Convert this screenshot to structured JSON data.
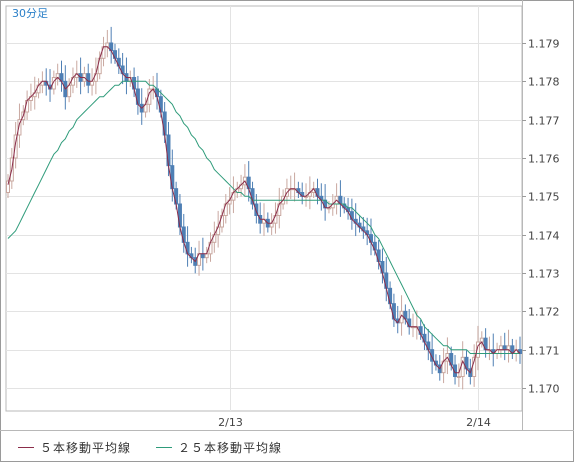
{
  "colors": {
    "up_candle": "#c9a8a0",
    "down_candle": "#4e7fb4",
    "ma5": "#8b2d4a",
    "ma25": "#2e9b7a",
    "grid": "#e3e3e3",
    "axis_text": "#444444",
    "timeframe_text": "#2a7fc8"
  },
  "chart_data": {
    "type": "candlestick",
    "timeframe": "30分足",
    "y_ticks": [
      "1.179",
      "1.178",
      "1.177",
      "1.176",
      "1.175",
      "1.174",
      "1.173",
      "1.172",
      "1.171",
      "1.170"
    ],
    "ylim": [
      1.1694,
      1.1799
    ],
    "x_ticks": [
      {
        "label": "2/13",
        "index": 58
      },
      {
        "label": "2/14",
        "index": 123
      }
    ],
    "grid": true,
    "legend_position": "bottom-left",
    "series": [
      {
        "name": "５本移動平均線",
        "key": "ma5"
      },
      {
        "name": "２５本移動平均線",
        "key": "ma25"
      }
    ],
    "close": [
      1.1754,
      1.176,
      1.1766,
      1.177,
      1.1772,
      1.1775,
      1.1776,
      1.1777,
      1.1779,
      1.178,
      1.1779,
      1.1778,
      1.1781,
      1.1782,
      1.178,
      1.1776,
      1.1779,
      1.1781,
      1.1782,
      1.178,
      1.1782,
      1.1779,
      1.178,
      1.1782,
      1.1786,
      1.1789,
      1.179,
      1.1788,
      1.1786,
      1.1784,
      1.1782,
      1.178,
      1.1781,
      1.1778,
      1.1774,
      1.1772,
      1.1774,
      1.1778,
      1.1778,
      1.1776,
      1.1772,
      1.1766,
      1.1758,
      1.1752,
      1.1748,
      1.1742,
      1.1738,
      1.1735,
      1.1734,
      1.1732,
      1.1735,
      1.1734,
      1.1735,
      1.1738,
      1.174,
      1.1742,
      1.1745,
      1.1748,
      1.1749,
      1.1751,
      1.1752,
      1.1753,
      1.1755,
      1.1752,
      1.1748,
      1.1745,
      1.1743,
      1.1744,
      1.1742,
      1.1743,
      1.1745,
      1.1748,
      1.175,
      1.1752,
      1.1752,
      1.1752,
      1.1751,
      1.175,
      1.175,
      1.1751,
      1.1752,
      1.175,
      1.1749,
      1.1747,
      1.1747,
      1.1748,
      1.175,
      1.1748,
      1.1747,
      1.1746,
      1.1744,
      1.1743,
      1.1742,
      1.1741,
      1.174,
      1.1738,
      1.1736,
      1.1733,
      1.173,
      1.1726,
      1.1722,
      1.1718,
      1.1717,
      1.172,
      1.1718,
      1.1716,
      1.1716,
      1.1716,
      1.1714,
      1.1712,
      1.171,
      1.1707,
      1.1706,
      1.1704,
      1.1707,
      1.1709,
      1.1706,
      1.1703,
      1.1703,
      1.1708,
      1.1705,
      1.1703,
      1.1708,
      1.1712,
      1.1713,
      1.171,
      1.171,
      1.1709,
      1.171,
      1.1711,
      1.171,
      1.1711,
      1.1709,
      1.171,
      1.1709
    ],
    "ma5": [
      1.1753,
      1.1757,
      1.1764,
      1.1769,
      1.1771,
      1.1775,
      1.1776,
      1.1777,
      1.1779,
      1.178,
      1.178,
      1.1778,
      1.178,
      1.1781,
      1.178,
      1.1778,
      1.1779,
      1.1781,
      1.1782,
      1.1781,
      1.1781,
      1.178,
      1.178,
      1.1782,
      1.1786,
      1.1789,
      1.1789,
      1.1788,
      1.1786,
      1.1784,
      1.1782,
      1.1781,
      1.1781,
      1.1778,
      1.1774,
      1.1773,
      1.1774,
      1.1777,
      1.1778,
      1.1776,
      1.1772,
      1.1766,
      1.1758,
      1.1752,
      1.1748,
      1.1742,
      1.1738,
      1.1735,
      1.1734,
      1.1733,
      1.1735,
      1.1735,
      1.1735,
      1.1738,
      1.174,
      1.1742,
      1.1745,
      1.1748,
      1.1749,
      1.1751,
      1.1752,
      1.1753,
      1.1754,
      1.1752,
      1.1749,
      1.1746,
      1.1744,
      1.1744,
      1.1743,
      1.1743,
      1.1745,
      1.1748,
      1.1749,
      1.1751,
      1.1752,
      1.1752,
      1.1751,
      1.175,
      1.175,
      1.1751,
      1.1752,
      1.175,
      1.1749,
      1.1747,
      1.1747,
      1.1748,
      1.1749,
      1.1748,
      1.1747,
      1.1746,
      1.1744,
      1.1743,
      1.1742,
      1.1741,
      1.174,
      1.1738,
      1.1736,
      1.1733,
      1.173,
      1.1726,
      1.1722,
      1.1718,
      1.1717,
      1.1719,
      1.1718,
      1.1716,
      1.1716,
      1.1716,
      1.1714,
      1.1712,
      1.171,
      1.1708,
      1.1706,
      1.1705,
      1.1707,
      1.1708,
      1.1706,
      1.1704,
      1.1704,
      1.1707,
      1.1705,
      1.1704,
      1.1707,
      1.1711,
      1.1712,
      1.171,
      1.171,
      1.1709,
      1.171,
      1.171,
      1.171,
      1.171,
      1.1709,
      1.171,
      1.1709
    ],
    "ma25": [
      1.1739,
      1.174,
      1.1741,
      1.1743,
      1.1745,
      1.1747,
      1.1749,
      1.1751,
      1.1753,
      1.1755,
      1.1757,
      1.1759,
      1.1761,
      1.1762,
      1.1764,
      1.1765,
      1.1767,
      1.1768,
      1.177,
      1.1771,
      1.1772,
      1.1773,
      1.1774,
      1.1775,
      1.1776,
      1.1776,
      1.1777,
      1.1778,
      1.1779,
      1.1779,
      1.178,
      1.178,
      1.178,
      1.178,
      1.178,
      1.178,
      1.178,
      1.1779,
      1.1779,
      1.1778,
      1.1777,
      1.1776,
      1.1775,
      1.1774,
      1.1772,
      1.1771,
      1.1769,
      1.1768,
      1.1766,
      1.1765,
      1.1763,
      1.1762,
      1.176,
      1.1759,
      1.1757,
      1.1756,
      1.1755,
      1.1754,
      1.1753,
      1.1752,
      1.1751,
      1.1751,
      1.175,
      1.175,
      1.1749,
      1.1749,
      1.1749,
      1.1749,
      1.1749,
      1.1749,
      1.1749,
      1.1749,
      1.1749,
      1.1749,
      1.1749,
      1.1749,
      1.1749,
      1.1749,
      1.1749,
      1.1749,
      1.1749,
      1.1749,
      1.1749,
      1.1749,
      1.1748,
      1.1748,
      1.1748,
      1.1748,
      1.1748,
      1.1747,
      1.1747,
      1.1746,
      1.1745,
      1.1744,
      1.1743,
      1.1742,
      1.174,
      1.1739,
      1.1737,
      1.1735,
      1.1733,
      1.1731,
      1.1729,
      1.1727,
      1.1725,
      1.1723,
      1.1721,
      1.1719,
      1.1718,
      1.1716,
      1.1715,
      1.1714,
      1.1713,
      1.1712,
      1.1711,
      1.1711,
      1.171,
      1.171,
      1.171,
      1.171,
      1.171,
      1.1709,
      1.1709,
      1.1709,
      1.1709,
      1.1709,
      1.1709,
      1.1709,
      1.1709,
      1.1709,
      1.1709,
      1.1709,
      1.1709,
      1.1709,
      1.1709
    ]
  }
}
